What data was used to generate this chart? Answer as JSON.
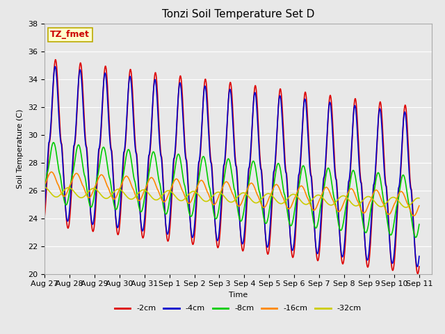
{
  "title": "Tonzi Soil Temperature Set D",
  "xlabel": "Time",
  "ylabel": "Soil Temperature (C)",
  "ylim": [
    20,
    38
  ],
  "xlim_days": 15.5,
  "annotation_text": "TZ_fmet",
  "annotation_color": "#cc0000",
  "annotation_bg": "#ffffcc",
  "annotation_border": "#bbaa00",
  "plot_bg": "#e8e8e8",
  "fig_bg": "#e8e8e8",
  "series": [
    {
      "label": "-2cm",
      "color": "#dd0000",
      "linewidth": 1.2
    },
    {
      "label": "-4cm",
      "color": "#0000cc",
      "linewidth": 1.2
    },
    {
      "label": "-8cm",
      "color": "#00cc00",
      "linewidth": 1.2
    },
    {
      "label": "-16cm",
      "color": "#ff8800",
      "linewidth": 1.2
    },
    {
      "label": "-32cm",
      "color": "#cccc00",
      "linewidth": 1.2
    }
  ],
  "tick_labels": [
    "Aug 27",
    "Aug 28",
    "Aug 29",
    "Aug 30",
    "Aug 31",
    "Sep 1",
    "Sep 2",
    "Sep 3",
    "Sep 4",
    "Sep 5",
    "Sep 6",
    "Sep 7",
    "Sep 8",
    "Sep 9",
    "Sep 10",
    "Sep 11"
  ],
  "n_days": 15,
  "points_per_day": 144,
  "legend_fontsize": 8,
  "title_fontsize": 11,
  "axis_fontsize": 8
}
